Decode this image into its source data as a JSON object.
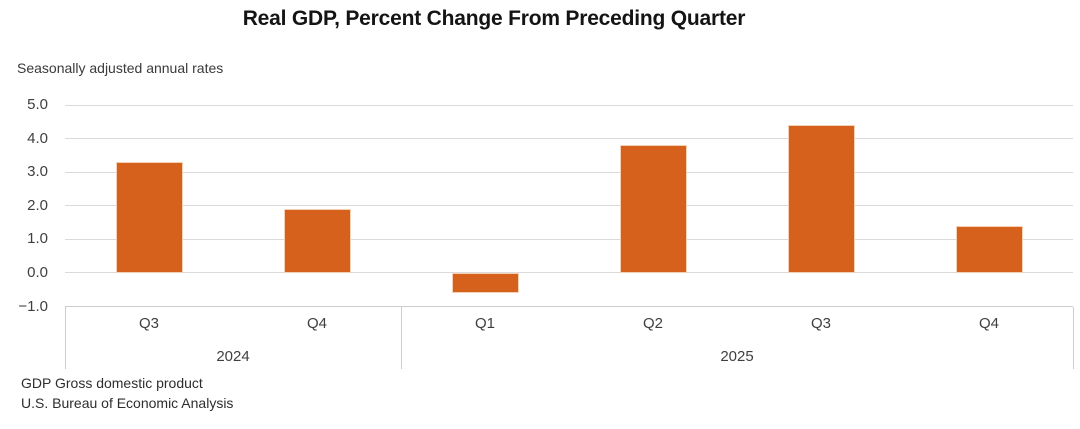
{
  "header": {
    "title": "Real GDP, Percent Change From Preceding Quarter",
    "subtitle": "Seasonally adjusted annual rates"
  },
  "chart_data": {
    "type": "bar",
    "title": "Real GDP, Percent Change From Preceding Quarter",
    "subtitle": "Seasonally adjusted annual rates",
    "categories": [
      "Q3",
      "Q4",
      "Q1",
      "Q2",
      "Q3",
      "Q4"
    ],
    "year_groups": [
      {
        "label": "2024",
        "count": 2
      },
      {
        "label": "2025",
        "count": 4
      }
    ],
    "values": [
      3.3,
      1.9,
      -0.6,
      3.8,
      4.4,
      1.4
    ],
    "ylabel": "",
    "xlabel": "",
    "ylim": [
      -1.0,
      5.0
    ],
    "ytick_step": 1.0,
    "yticks": [
      "5.0",
      "4.0",
      "3.0",
      "2.0",
      "1.0",
      "0.0",
      "−1.0"
    ],
    "grid": true,
    "legend": false,
    "bar_color": "#D6611D",
    "bar_border_color": "#F4D0B5",
    "gridline_color": "#DADADA",
    "axis_line_color": "#CCCCCC"
  },
  "footer": {
    "line1": "GDP Gross domestic product",
    "line2": "U.S. Bureau of Economic Analysis"
  }
}
